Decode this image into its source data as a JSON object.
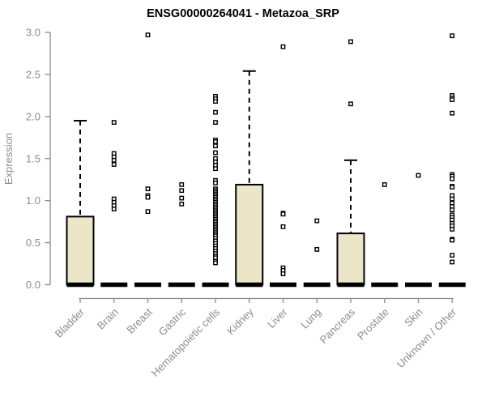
{
  "chart_data": {
    "type": "boxplot",
    "title": "ENSG00000264041 - Metazoa_SRP",
    "ylabel": "Expression",
    "ylim": [
      0.0,
      3.0
    ],
    "yticks": [
      0.0,
      0.5,
      1.0,
      1.5,
      2.0,
      2.5,
      3.0
    ],
    "grid": "off",
    "categories": [
      "Bladder",
      "Brain",
      "Breast",
      "Gastric",
      "Hematopoietic cells",
      "Kidney",
      "Liver",
      "Lung",
      "Pancreas",
      "Prostate",
      "Skin",
      "Unknown / Other"
    ],
    "boxes": [
      {
        "category": "Bladder",
        "low": 0,
        "q1": 0,
        "median": 0,
        "q3": 0.81,
        "high": 1.95,
        "outliers": []
      },
      {
        "category": "Brain",
        "low": 0,
        "q1": 0,
        "median": 0,
        "q3": 0,
        "high": 0,
        "outliers": [
          1.93,
          1.56,
          1.52,
          1.48,
          1.43,
          1.02,
          0.98,
          0.94,
          0.9
        ]
      },
      {
        "category": "Breast",
        "low": 0,
        "q1": 0,
        "median": 0,
        "q3": 0,
        "high": 0,
        "outliers": [
          2.97,
          1.14,
          1.06,
          1.04,
          0.87
        ]
      },
      {
        "category": "Gastric",
        "low": 0,
        "q1": 0,
        "median": 0,
        "q3": 0,
        "high": 0,
        "outliers": [
          1.19,
          1.12,
          1.03,
          0.96
        ]
      },
      {
        "category": "Hematopoietic cells",
        "low": 0,
        "q1": 0,
        "median": 0,
        "q3": 0,
        "high": 0,
        "outliers": [
          2.24,
          2.21,
          2.18,
          2.05,
          1.93,
          1.72,
          1.7,
          1.65,
          1.57,
          1.5,
          1.46,
          1.42,
          1.38,
          1.24,
          1.21,
          1.14,
          1.12,
          1.1,
          1.08,
          1.06,
          1.04,
          1.02,
          1.0,
          0.98,
          0.96,
          0.94,
          0.92,
          0.9,
          0.88,
          0.86,
          0.84,
          0.82,
          0.8,
          0.78,
          0.76,
          0.74,
          0.72,
          0.7,
          0.68,
          0.66,
          0.64,
          0.62,
          0.6,
          0.58,
          0.55,
          0.52,
          0.49,
          0.46,
          0.43,
          0.4,
          0.37,
          0.34,
          0.32,
          0.28,
          0.26
        ]
      },
      {
        "category": "Kidney",
        "low": 0,
        "q1": 0,
        "median": 0,
        "q3": 1.19,
        "high": 2.54,
        "outliers": []
      },
      {
        "category": "Liver",
        "low": 0,
        "q1": 0,
        "median": 0,
        "q3": 0,
        "high": 0,
        "outliers": [
          2.83,
          0.85,
          0.84,
          0.69,
          0.2,
          0.17,
          0.13
        ]
      },
      {
        "category": "Lung",
        "low": 0,
        "q1": 0,
        "median": 0,
        "q3": 0,
        "high": 0,
        "outliers": [
          0.76,
          0.42
        ]
      },
      {
        "category": "Pancreas",
        "low": 0,
        "q1": 0,
        "median": 0,
        "q3": 0.61,
        "high": 1.48,
        "outliers": [
          2.89,
          2.15
        ]
      },
      {
        "category": "Prostate",
        "low": 0,
        "q1": 0,
        "median": 0,
        "q3": 0,
        "high": 0,
        "outliers": [
          1.19
        ]
      },
      {
        "category": "Skin",
        "low": 0,
        "q1": 0,
        "median": 0,
        "q3": 0,
        "high": 0,
        "outliers": [
          1.3
        ]
      },
      {
        "category": "Unknown / Other",
        "low": 0,
        "q1": 0,
        "median": 0,
        "q3": 0,
        "high": 0,
        "outliers": [
          2.96,
          2.25,
          2.22,
          2.2,
          2.04,
          1.31,
          1.29,
          1.26,
          1.17,
          1.16,
          1.06,
          1.02,
          0.97,
          0.93,
          0.89,
          0.83,
          0.8,
          0.77,
          0.73,
          0.7,
          0.66,
          0.54,
          0.53,
          0.35,
          0.27
        ]
      }
    ],
    "colors": {
      "box_fill": "#ece6c8",
      "box_stroke": "#000000",
      "median": "#000000",
      "whisker": "#000000",
      "outlier_stroke": "#000000",
      "outlier_fill": "#ffffff",
      "axis": "#8c8c8c",
      "title": "#000000",
      "background": "#ffffff"
    },
    "legend": "none"
  }
}
